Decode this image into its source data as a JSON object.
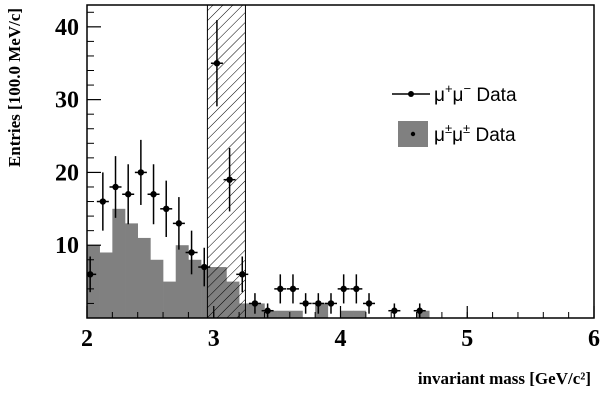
{
  "chart_data": {
    "type": "histogram",
    "xlabel": "invariant mass [GeV/c²]",
    "ylabel": "Entries [100.0 MeV/c]",
    "xlim": [
      2,
      6
    ],
    "ylim": [
      0,
      43
    ],
    "x_ticks": [
      "2",
      "3",
      "4",
      "5",
      "6"
    ],
    "y_ticks": [
      "10",
      "20",
      "30",
      "40"
    ],
    "grid": false,
    "legend_position": "top-right",
    "colors": {
      "background_histogram": "#808080",
      "data_points": "#000000",
      "band_hatch": "#000000"
    },
    "shaded_band": {
      "x_range": [
        2.95,
        3.25
      ],
      "style": "hatched"
    },
    "series": [
      {
        "name": "μ+μ− Data",
        "kind": "points",
        "x": [
          2.025,
          2.125,
          2.225,
          2.325,
          2.425,
          2.525,
          2.625,
          2.725,
          2.825,
          2.925,
          3.025,
          3.125,
          3.225,
          3.325,
          3.425,
          3.525,
          3.625,
          3.725,
          3.825,
          3.925,
          4.025,
          4.125,
          4.225,
          4.425,
          4.625
        ],
        "y": [
          6,
          16,
          18,
          17,
          20,
          17,
          15,
          13,
          9,
          7,
          35,
          19,
          6,
          2,
          1,
          4,
          4,
          2,
          2,
          2,
          4,
          4,
          2,
          1,
          1
        ],
        "yerr": [
          2.45,
          4.0,
          4.24,
          4.12,
          4.47,
          4.12,
          3.87,
          3.61,
          3.0,
          2.65,
          5.92,
          4.36,
          2.45,
          1.41,
          1.0,
          2.0,
          2.0,
          1.41,
          1.41,
          1.41,
          2.0,
          2.0,
          1.41,
          1.0,
          1.0
        ]
      },
      {
        "name": "μ±μ± Data",
        "kind": "filled-histogram",
        "bin_width": 0.1,
        "bin_low_edges": [
          2.0,
          2.1,
          2.2,
          2.3,
          2.4,
          2.5,
          2.6,
          2.7,
          2.8,
          2.9,
          3.0,
          3.1,
          3.2,
          3.3,
          3.4,
          3.5,
          3.6,
          3.7,
          3.8,
          3.9,
          4.0,
          4.1,
          4.2,
          4.3,
          4.4,
          4.5,
          4.6,
          4.7
        ],
        "values": [
          10,
          9,
          15,
          13,
          11,
          8,
          5,
          10,
          8,
          7,
          7,
          5,
          2,
          2,
          1,
          1,
          1,
          0,
          2,
          0,
          1,
          1,
          0,
          0,
          0,
          0,
          1,
          0
        ]
      }
    ],
    "legend": [
      {
        "label_base1": "μ",
        "label_sup1": "+",
        "label_base2": "μ",
        "label_sup2": "−",
        "label_suffix": " Data",
        "marker": "point-with-line"
      },
      {
        "label_base1": "μ",
        "label_sup1": "±",
        "label_base2": "μ",
        "label_sup2": "±",
        "label_suffix": " Data",
        "marker": "filled-box"
      }
    ]
  }
}
